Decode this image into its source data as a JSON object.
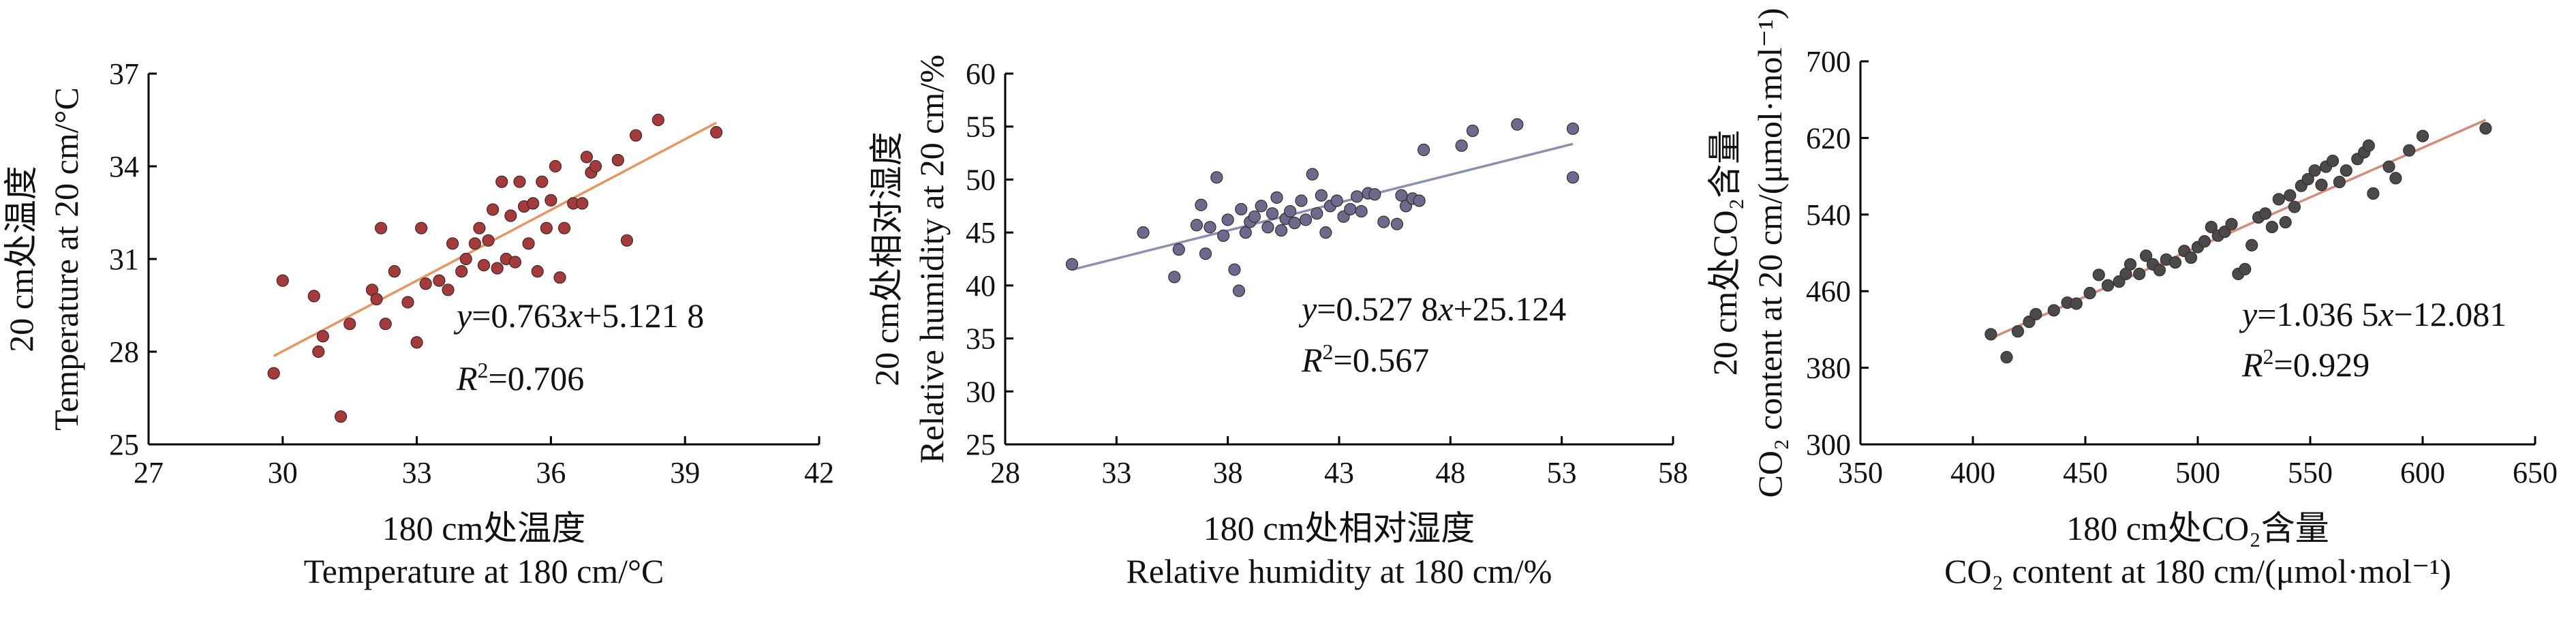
{
  "chart_data": [
    {
      "type": "scatter",
      "xlim": [
        27,
        42
      ],
      "ylim": [
        25,
        37
      ],
      "xticks": [
        "27",
        "30",
        "33",
        "36",
        "39",
        "42"
      ],
      "yticks": [
        "25",
        "28",
        "31",
        "34",
        "37"
      ],
      "xlabel_lines": [
        "180 cm处温度",
        "Temperature at 180 cm/°C"
      ],
      "ylabel_lines": [
        "20 cm处温度",
        "Temperature at 20 cm/°C"
      ],
      "equation": {
        "y": "y",
        "rest": "=0.763",
        "x": "x",
        "tail": "+5.121 8"
      },
      "r2": {
        "R": "R",
        "sup": "2",
        "rest": "=0.706"
      },
      "fit_line": [
        [
          29.8,
          27.86
        ],
        [
          39.7,
          35.41
        ]
      ],
      "point_color": "#a63a3a",
      "line_color": "#e8955f",
      "points": [
        [
          29.8,
          27.3
        ],
        [
          30.0,
          30.3
        ],
        [
          30.7,
          29.8
        ],
        [
          30.8,
          28.0
        ],
        [
          30.9,
          28.5
        ],
        [
          31.3,
          25.9
        ],
        [
          31.5,
          28.9
        ],
        [
          32.0,
          30.0
        ],
        [
          32.1,
          29.7
        ],
        [
          32.2,
          32.0
        ],
        [
          32.3,
          28.9
        ],
        [
          32.5,
          30.6
        ],
        [
          32.8,
          29.6
        ],
        [
          33.0,
          28.3
        ],
        [
          33.1,
          32.0
        ],
        [
          33.2,
          30.2
        ],
        [
          33.5,
          30.3
        ],
        [
          33.7,
          30.0
        ],
        [
          33.8,
          31.5
        ],
        [
          34.0,
          30.6
        ],
        [
          34.1,
          31.0
        ],
        [
          34.3,
          31.5
        ],
        [
          34.4,
          32.0
        ],
        [
          34.5,
          30.8
        ],
        [
          34.6,
          31.6
        ],
        [
          34.7,
          32.6
        ],
        [
          34.8,
          30.7
        ],
        [
          34.9,
          33.5
        ],
        [
          35.0,
          31.0
        ],
        [
          35.1,
          32.4
        ],
        [
          35.2,
          30.9
        ],
        [
          35.3,
          33.5
        ],
        [
          35.4,
          32.7
        ],
        [
          35.5,
          31.5
        ],
        [
          35.6,
          32.8
        ],
        [
          35.7,
          30.6
        ],
        [
          35.8,
          33.5
        ],
        [
          35.9,
          32.0
        ],
        [
          36.0,
          32.9
        ],
        [
          36.1,
          34.0
        ],
        [
          36.2,
          30.4
        ],
        [
          36.3,
          32.0
        ],
        [
          36.5,
          32.8
        ],
        [
          36.7,
          32.8
        ],
        [
          36.8,
          34.3
        ],
        [
          36.9,
          33.8
        ],
        [
          37.0,
          34.0
        ],
        [
          37.5,
          34.2
        ],
        [
          37.7,
          31.6
        ],
        [
          37.9,
          35.0
        ],
        [
          38.4,
          35.5
        ],
        [
          39.7,
          35.1
        ]
      ]
    },
    {
      "type": "scatter",
      "xlim": [
        28,
        58
      ],
      "ylim": [
        25,
        60
      ],
      "xticks": [
        "28",
        "33",
        "38",
        "43",
        "48",
        "53",
        "58"
      ],
      "yticks": [
        "25",
        "30",
        "35",
        "40",
        "45",
        "50",
        "55",
        "60"
      ],
      "xlabel_lines": [
        "180 cm处相对湿度",
        "Relative humidity at 180 cm/%"
      ],
      "ylabel_lines": [
        "20 cm处相对湿度",
        "Relative humidity at 20 cm/%"
      ],
      "equation": {
        "y": "y",
        "rest": "=0.527 8",
        "x": "x",
        "tail": "+25.124"
      },
      "r2": {
        "R": "R",
        "sup": "2",
        "rest": "=0.567"
      },
      "fit_line": [
        [
          31.0,
          41.49
        ],
        [
          53.5,
          53.36
        ]
      ],
      "point_color": "#6e6a8e",
      "line_color": "#8a8fb5",
      "points": [
        [
          31.0,
          42.0
        ],
        [
          34.2,
          45.0
        ],
        [
          35.6,
          40.8
        ],
        [
          35.8,
          43.4
        ],
        [
          36.6,
          45.7
        ],
        [
          36.8,
          47.6
        ],
        [
          37.0,
          43.0
        ],
        [
          37.2,
          45.5
        ],
        [
          37.5,
          50.2
        ],
        [
          37.8,
          44.7
        ],
        [
          38.0,
          46.2
        ],
        [
          38.3,
          41.5
        ],
        [
          38.5,
          39.5
        ],
        [
          38.6,
          47.2
        ],
        [
          38.8,
          45.0
        ],
        [
          39.0,
          46.0
        ],
        [
          39.2,
          46.5
        ],
        [
          39.5,
          47.5
        ],
        [
          39.8,
          45.5
        ],
        [
          40.0,
          46.8
        ],
        [
          40.2,
          48.3
        ],
        [
          40.4,
          45.2
        ],
        [
          40.6,
          46.3
        ],
        [
          40.8,
          47.0
        ],
        [
          41.0,
          45.9
        ],
        [
          41.3,
          48.0
        ],
        [
          41.5,
          46.2
        ],
        [
          41.8,
          50.5
        ],
        [
          42.0,
          46.8
        ],
        [
          42.2,
          48.5
        ],
        [
          42.4,
          45.0
        ],
        [
          42.6,
          47.5
        ],
        [
          42.9,
          48.0
        ],
        [
          43.2,
          46.5
        ],
        [
          43.5,
          47.2
        ],
        [
          43.8,
          48.4
        ],
        [
          44.0,
          47.0
        ],
        [
          44.3,
          48.7
        ],
        [
          44.6,
          48.6
        ],
        [
          45.0,
          46.0
        ],
        [
          45.6,
          45.8
        ],
        [
          45.8,
          48.5
        ],
        [
          46.0,
          47.5
        ],
        [
          46.3,
          48.2
        ],
        [
          46.6,
          48.0
        ],
        [
          46.8,
          52.8
        ],
        [
          48.5,
          53.2
        ],
        [
          49.0,
          54.6
        ],
        [
          51.0,
          55.2
        ],
        [
          53.5,
          54.8
        ],
        [
          53.5,
          50.2
        ]
      ]
    },
    {
      "type": "scatter",
      "xlim": [
        350,
        650
      ],
      "ylim": [
        300,
        700
      ],
      "xticks": [
        "350",
        "400",
        "450",
        "500",
        "550",
        "600",
        "650"
      ],
      "yticks": [
        "300",
        "380",
        "460",
        "540",
        "620",
        "700"
      ],
      "xlabel_lines": [
        "180 cm处CO₂含量",
        "CO₂ content at 180 cm/(μmol·mol⁻¹)"
      ],
      "ylabel_lines": [
        "20 cm处CO₂含量",
        "CO₂ content at 20 cm/(μmol·mol⁻¹)"
      ],
      "equation": {
        "y": "y",
        "rest": "=1.036 5",
        "x": "x",
        "tail": "−12.081"
      },
      "r2": {
        "R": "R",
        "sup": "2",
        "rest": "=0.929"
      },
      "fit_line": [
        [
          407,
          409.8
        ],
        [
          628,
          638.8
        ]
      ],
      "point_color": "#4a4a4a",
      "line_color": "#d58a7a",
      "points": [
        [
          408,
          415
        ],
        [
          415,
          391
        ],
        [
          420,
          418
        ],
        [
          425,
          428
        ],
        [
          428,
          436
        ],
        [
          436,
          440
        ],
        [
          442,
          448
        ],
        [
          446,
          447
        ],
        [
          452,
          458
        ],
        [
          456,
          477
        ],
        [
          460,
          466
        ],
        [
          465,
          470
        ],
        [
          468,
          478
        ],
        [
          470,
          488
        ],
        [
          474,
          478
        ],
        [
          477,
          497
        ],
        [
          480,
          488
        ],
        [
          483,
          482
        ],
        [
          486,
          493
        ],
        [
          490,
          490
        ],
        [
          494,
          502
        ],
        [
          497,
          495
        ],
        [
          500,
          506
        ],
        [
          503,
          512
        ],
        [
          506,
          527
        ],
        [
          509,
          518
        ],
        [
          512,
          522
        ],
        [
          515,
          530
        ],
        [
          518,
          478
        ],
        [
          521,
          483
        ],
        [
          524,
          508
        ],
        [
          527,
          537
        ],
        [
          530,
          541
        ],
        [
          533,
          527
        ],
        [
          536,
          556
        ],
        [
          539,
          532
        ],
        [
          541,
          560
        ],
        [
          543,
          548
        ],
        [
          546,
          570
        ],
        [
          549,
          577
        ],
        [
          552,
          586
        ],
        [
          555,
          571
        ],
        [
          557,
          590
        ],
        [
          560,
          596
        ],
        [
          563,
          574
        ],
        [
          566,
          586
        ],
        [
          571,
          598
        ],
        [
          574,
          605
        ],
        [
          576,
          612
        ],
        [
          578,
          562
        ],
        [
          585,
          590
        ],
        [
          588,
          578
        ],
        [
          594,
          607
        ],
        [
          600,
          622
        ],
        [
          628,
          630
        ]
      ]
    }
  ]
}
